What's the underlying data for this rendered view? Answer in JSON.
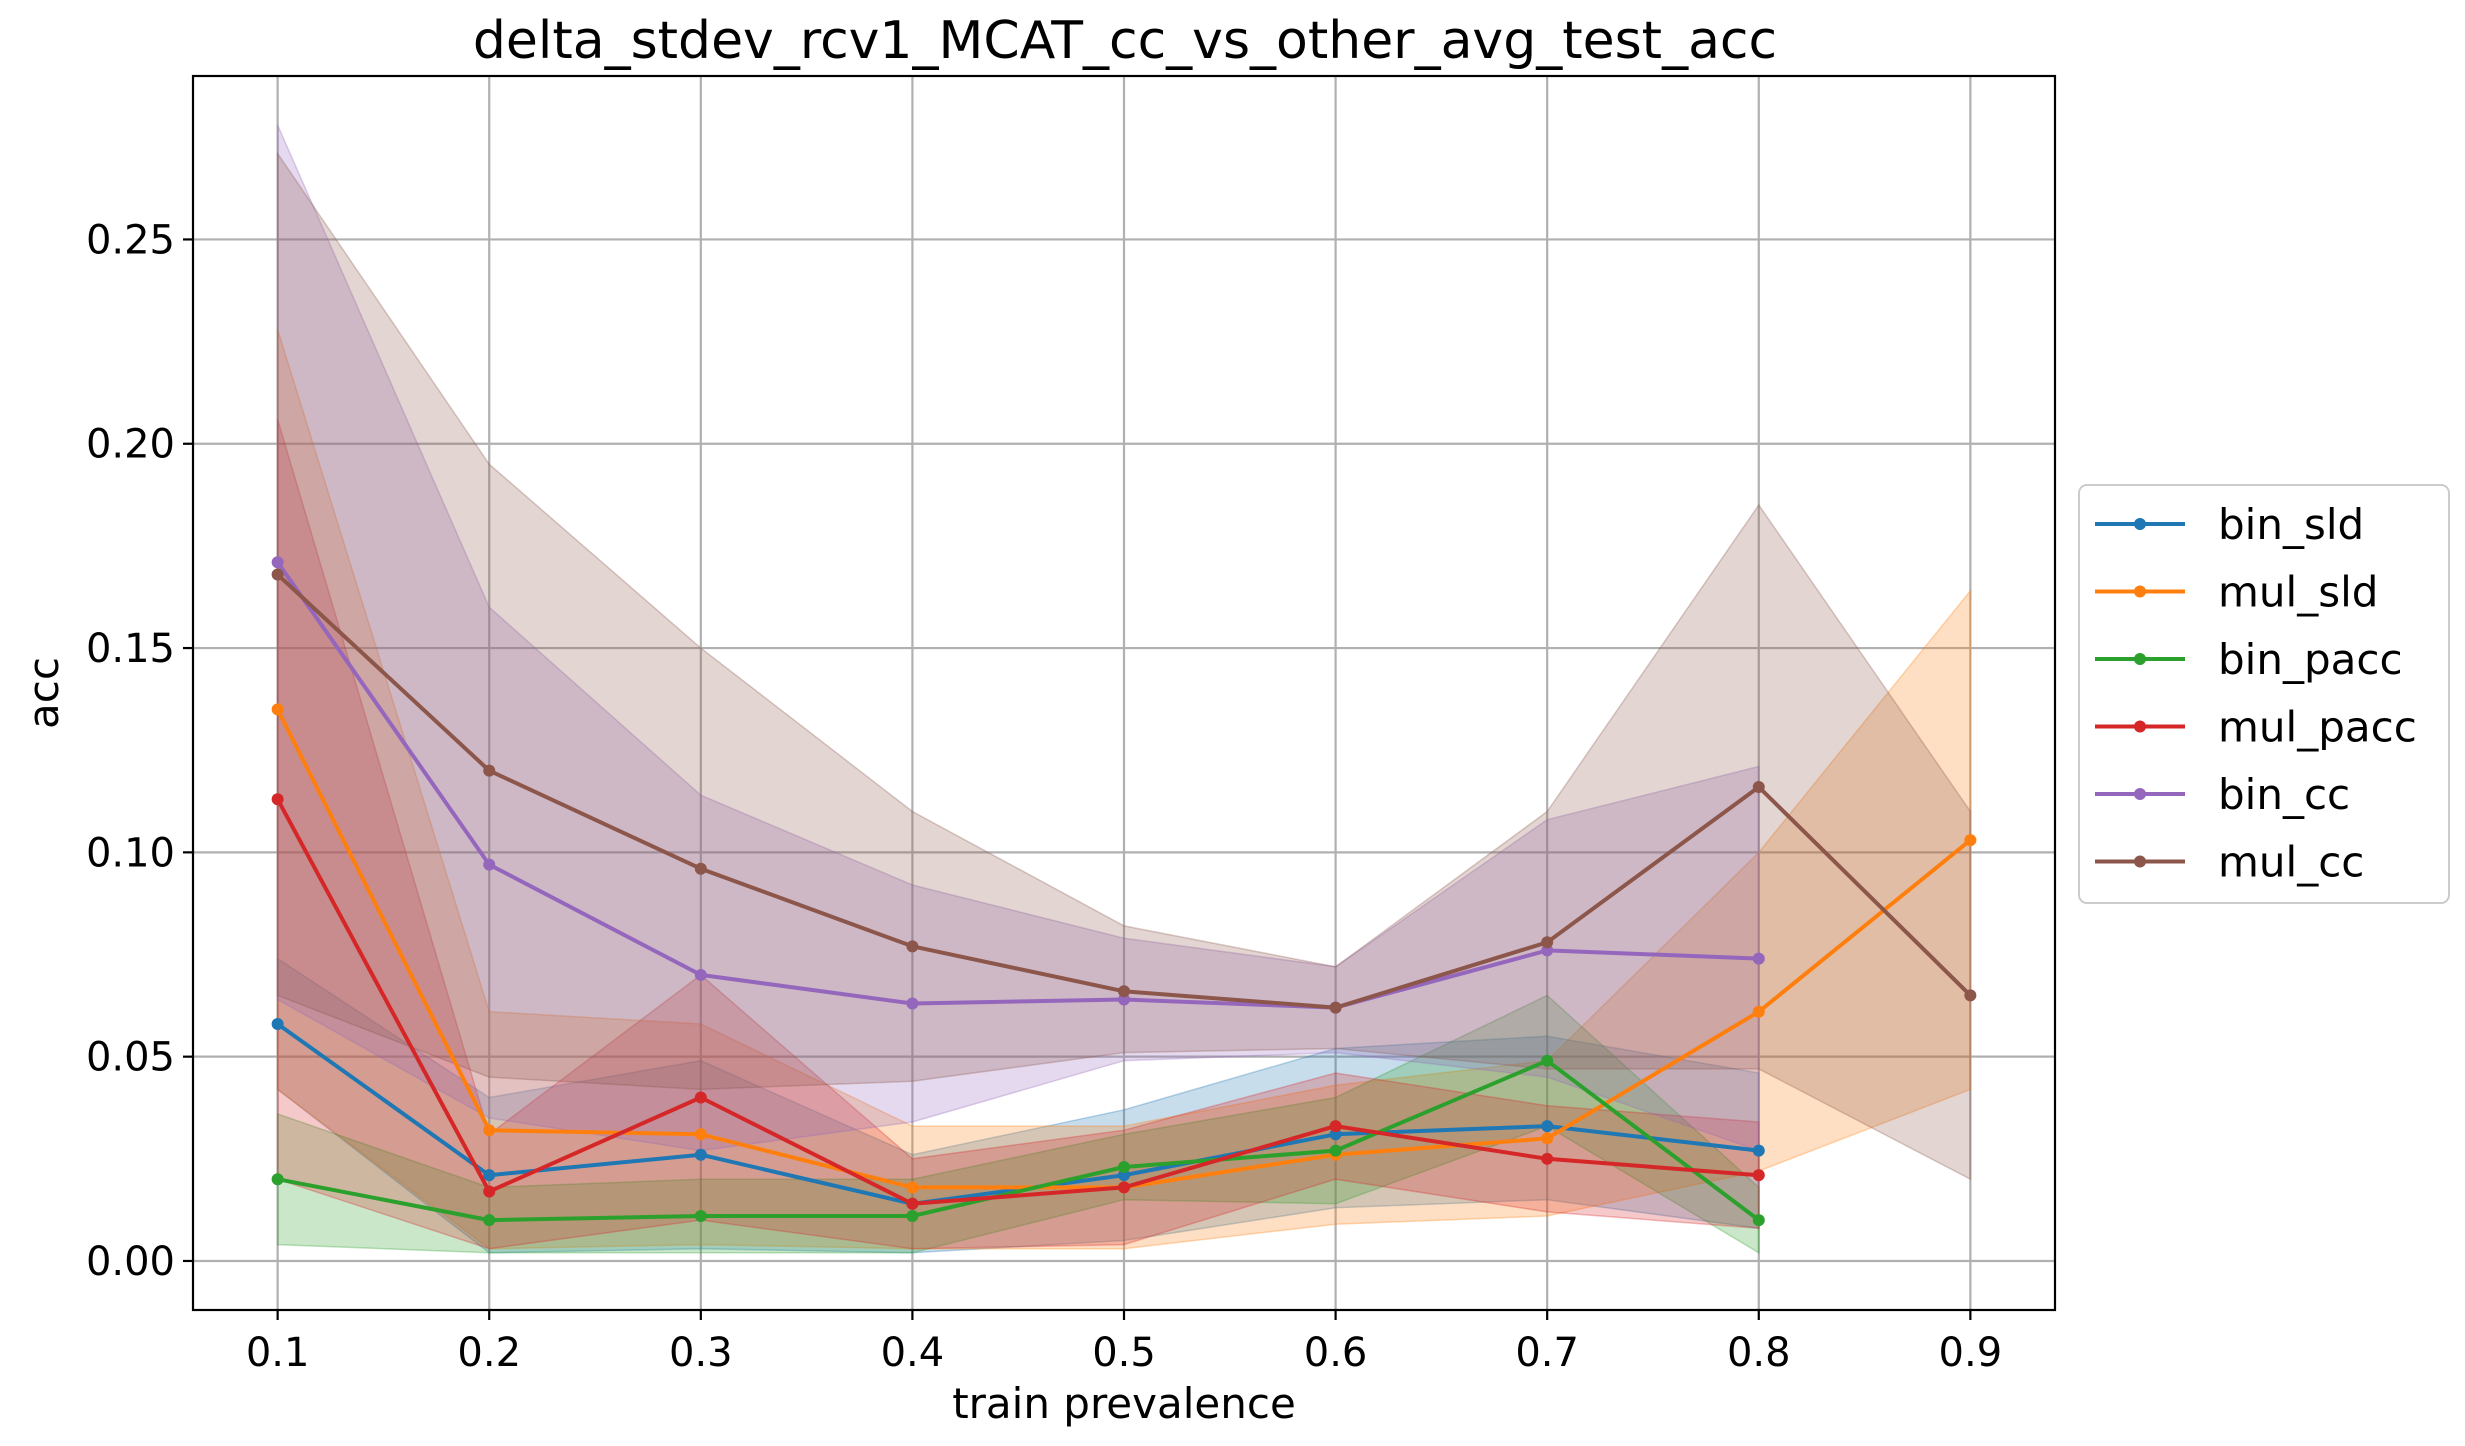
{
  "chart_data": {
    "type": "line",
    "title": "delta_stdev_rcv1_MCAT_cc_vs_other_avg_test_acc",
    "xlabel": "train prevalence",
    "ylabel": "acc",
    "xlim": [
      0.06,
      0.94
    ],
    "ylim": [
      -0.012,
      0.29
    ],
    "x_ticks": [
      "0.1",
      "0.2",
      "0.3",
      "0.4",
      "0.5",
      "0.6",
      "0.7",
      "0.8",
      "0.9"
    ],
    "y_ticks": [
      "0.00",
      "0.05",
      "0.10",
      "0.15",
      "0.20",
      "0.25"
    ],
    "grid": true,
    "legend_position": "center-right-outside",
    "series": [
      {
        "name": "bin_sld",
        "color": "#1f77b4",
        "x": [
          0.1,
          0.2,
          0.3,
          0.4,
          0.5,
          0.6,
          0.7,
          0.8
        ],
        "values": [
          0.058,
          0.021,
          0.026,
          0.014,
          0.021,
          0.031,
          0.033,
          0.027
        ],
        "lower": [
          0.042,
          0.002,
          0.003,
          0.002,
          0.005,
          0.013,
          0.015,
          0.008
        ],
        "upper": [
          0.074,
          0.04,
          0.049,
          0.026,
          0.037,
          0.052,
          0.055,
          0.046
        ]
      },
      {
        "name": "mul_sld",
        "color": "#ff7f0e",
        "x": [
          0.1,
          0.2,
          0.3,
          0.4,
          0.5,
          0.6,
          0.7,
          0.8,
          0.9
        ],
        "values": [
          0.135,
          0.032,
          0.031,
          0.018,
          0.018,
          0.026,
          0.03,
          0.061,
          0.103
        ],
        "lower": [
          0.042,
          0.003,
          0.004,
          0.003,
          0.003,
          0.009,
          0.011,
          0.022,
          0.042
        ],
        "upper": [
          0.228,
          0.061,
          0.058,
          0.033,
          0.033,
          0.043,
          0.049,
          0.1,
          0.164
        ]
      },
      {
        "name": "bin_pacc",
        "color": "#2ca02c",
        "x": [
          0.1,
          0.2,
          0.3,
          0.4,
          0.5,
          0.6,
          0.7,
          0.8
        ],
        "values": [
          0.02,
          0.01,
          0.011,
          0.011,
          0.023,
          0.027,
          0.049,
          0.01
        ],
        "lower": [
          0.004,
          0.002,
          0.002,
          0.002,
          0.015,
          0.014,
          0.033,
          0.002
        ],
        "upper": [
          0.036,
          0.018,
          0.02,
          0.02,
          0.031,
          0.04,
          0.065,
          0.018
        ]
      },
      {
        "name": "mul_pacc",
        "color": "#d62728",
        "x": [
          0.1,
          0.2,
          0.3,
          0.4,
          0.5,
          0.6,
          0.7,
          0.8
        ],
        "values": [
          0.113,
          0.017,
          0.04,
          0.014,
          0.018,
          0.033,
          0.025,
          0.021
        ],
        "lower": [
          0.02,
          0.003,
          0.01,
          0.003,
          0.004,
          0.02,
          0.012,
          0.008
        ],
        "upper": [
          0.206,
          0.031,
          0.07,
          0.025,
          0.032,
          0.046,
          0.038,
          0.034
        ]
      },
      {
        "name": "bin_cc",
        "color": "#9467bd",
        "x": [
          0.1,
          0.2,
          0.3,
          0.4,
          0.5,
          0.6,
          0.7,
          0.8
        ],
        "values": [
          0.171,
          0.097,
          0.07,
          0.063,
          0.064,
          0.062,
          0.076,
          0.074
        ],
        "lower": [
          0.064,
          0.035,
          0.027,
          0.034,
          0.049,
          0.051,
          0.045,
          0.027
        ],
        "upper": [
          0.278,
          0.16,
          0.114,
          0.092,
          0.079,
          0.072,
          0.108,
          0.121
        ]
      },
      {
        "name": "mul_cc",
        "color": "#8c564b",
        "x": [
          0.1,
          0.2,
          0.3,
          0.4,
          0.5,
          0.6,
          0.7,
          0.8,
          0.9
        ],
        "values": [
          0.168,
          0.12,
          0.096,
          0.077,
          0.066,
          0.062,
          0.078,
          0.116,
          0.065
        ],
        "lower": [
          0.065,
          0.045,
          0.042,
          0.044,
          0.051,
          0.052,
          0.047,
          0.047,
          0.02
        ],
        "upper": [
          0.271,
          0.195,
          0.15,
          0.11,
          0.082,
          0.072,
          0.11,
          0.185,
          0.11
        ]
      }
    ]
  }
}
